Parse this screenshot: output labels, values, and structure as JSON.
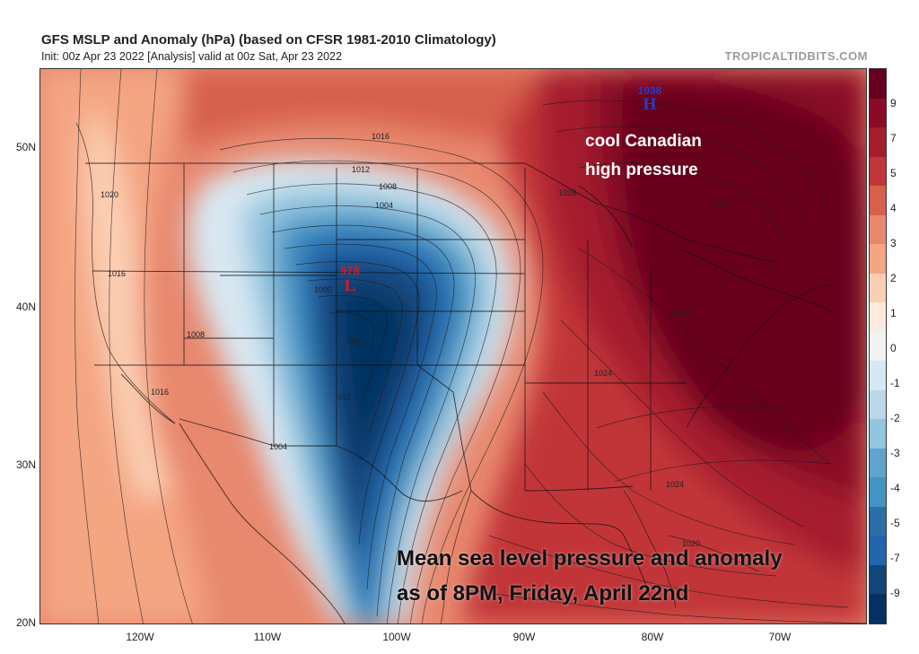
{
  "header": {
    "title": "GFS MSLP and Anomaly (hPa) (based on CFSR 1981-2010 Climatology)",
    "subtitle": "Init: 00z Apr 23 2022   [Analysis]   valid at 00z Sat, Apr 23 2022",
    "site": "TROPICALTIDBITS.COM"
  },
  "axes": {
    "lat_labels": [
      "50N",
      "40N",
      "30N",
      "20N"
    ],
    "lon_labels": [
      "120W",
      "110W",
      "100W",
      "90W",
      "80W",
      "70W"
    ]
  },
  "colorbar": {
    "labels": [
      "9",
      "7",
      "5",
      "4",
      "3",
      "2",
      "1",
      "0",
      "-1",
      "-2",
      "-3",
      "-4",
      "-5",
      "-7",
      "-9"
    ],
    "colors": [
      "#67001f",
      "#8a0b25",
      "#a51d2d",
      "#c13639",
      "#d6604d",
      "#e8886e",
      "#f4a582",
      "#fbcfb3",
      "#fdebe0",
      "#f2f2f2",
      "#d8e8f2",
      "#bcd7e9",
      "#92c5de",
      "#5fa4cc",
      "#4393c3",
      "#2b6fa8",
      "#2166ac",
      "#12457a",
      "#053061"
    ]
  },
  "centers": {
    "high_value": "1038",
    "high_letter": "H",
    "low_value": "978",
    "low_letter": "L"
  },
  "isobar_labels": [
    "1016",
    "1012",
    "1008",
    "1004",
    "1020",
    "1008",
    "1016",
    "1004",
    "984",
    "992",
    "1000",
    "1024",
    "1024",
    "1028",
    "1028",
    "1032",
    "1020",
    "1016"
  ],
  "annotations": {
    "canadian_high_line1": "cool Canadian",
    "canadian_high_line2": "high pressure",
    "caption_line1": "Mean sea level pressure and anomaly",
    "caption_line2": "as of 8PM, Friday, April 22nd"
  },
  "colors": {
    "deep_red": "#7f0a22",
    "deep_blue": "#0d3c78",
    "low_marker": "#e01818",
    "high_marker": "#1b3fd6"
  }
}
